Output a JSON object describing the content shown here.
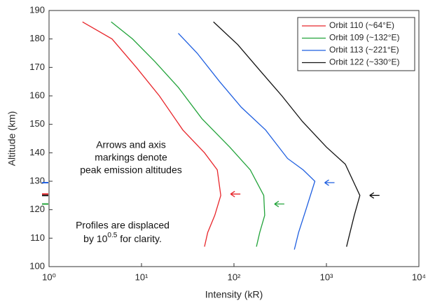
{
  "chart_data": {
    "type": "line",
    "x_label": "Intensity (kR)",
    "y_label": "Altitude (km)",
    "xscale": "log",
    "xlim": [
      1,
      10000
    ],
    "ylim": [
      100,
      190
    ],
    "xticks": [
      {
        "value": 1,
        "label": "10⁰"
      },
      {
        "value": 10,
        "label": "10¹"
      },
      {
        "value": 100,
        "label": "10²"
      },
      {
        "value": 1000,
        "label": "10³"
      },
      {
        "value": 10000,
        "label": "10⁴"
      }
    ],
    "yticks": [
      100,
      110,
      120,
      130,
      140,
      150,
      160,
      170,
      180,
      190
    ],
    "legend": "top-right",
    "series": [
      {
        "name": "Orbit 110 (~64°E)",
        "color": "#e8262b",
        "x": [
          2.3,
          4.8,
          8.8,
          15.6,
          28,
          48,
          66,
          72,
          62,
          52,
          48
        ],
        "y": [
          186,
          180,
          170,
          160,
          148,
          140,
          134,
          125,
          118,
          112,
          107
        ],
        "peak_altitude": 125.5
      },
      {
        "name": "Orbit 109 (~132°E)",
        "color": "#22a33a",
        "x": [
          4.7,
          8,
          14,
          25,
          45,
          90,
          150,
          210,
          215,
          190,
          175
        ],
        "y": [
          186,
          180,
          172,
          163,
          152,
          142,
          134,
          125,
          118,
          112,
          107
        ],
        "peak_altitude": 122
      },
      {
        "name": "Orbit 113 (~221°E)",
        "color": "#1f5fe0",
        "x": [
          25,
          40,
          70,
          120,
          220,
          380,
          560,
          750,
          600,
          500,
          450
        ],
        "y": [
          182,
          175,
          165,
          156,
          148,
          138,
          134,
          130,
          120,
          112,
          106
        ],
        "peak_altitude": 129.5
      },
      {
        "name": "Orbit 122 (~330°E)",
        "color": "#111111",
        "x": [
          60,
          110,
          190,
          330,
          550,
          1000,
          1600,
          2300,
          2000,
          1800,
          1650
        ],
        "y": [
          186,
          178,
          169,
          160,
          151,
          142,
          136,
          125,
          118,
          112,
          107
        ],
        "peak_altitude": 125
      }
    ],
    "annotations": [
      {
        "lines": [
          "Arrows and axis",
          "markings denote",
          "peak emission altitudes"
        ]
      },
      {
        "lines": [
          "Profiles are displaced"
        ],
        "parts": [
          "by 10",
          "0.5",
          " for clarity."
        ]
      }
    ]
  }
}
